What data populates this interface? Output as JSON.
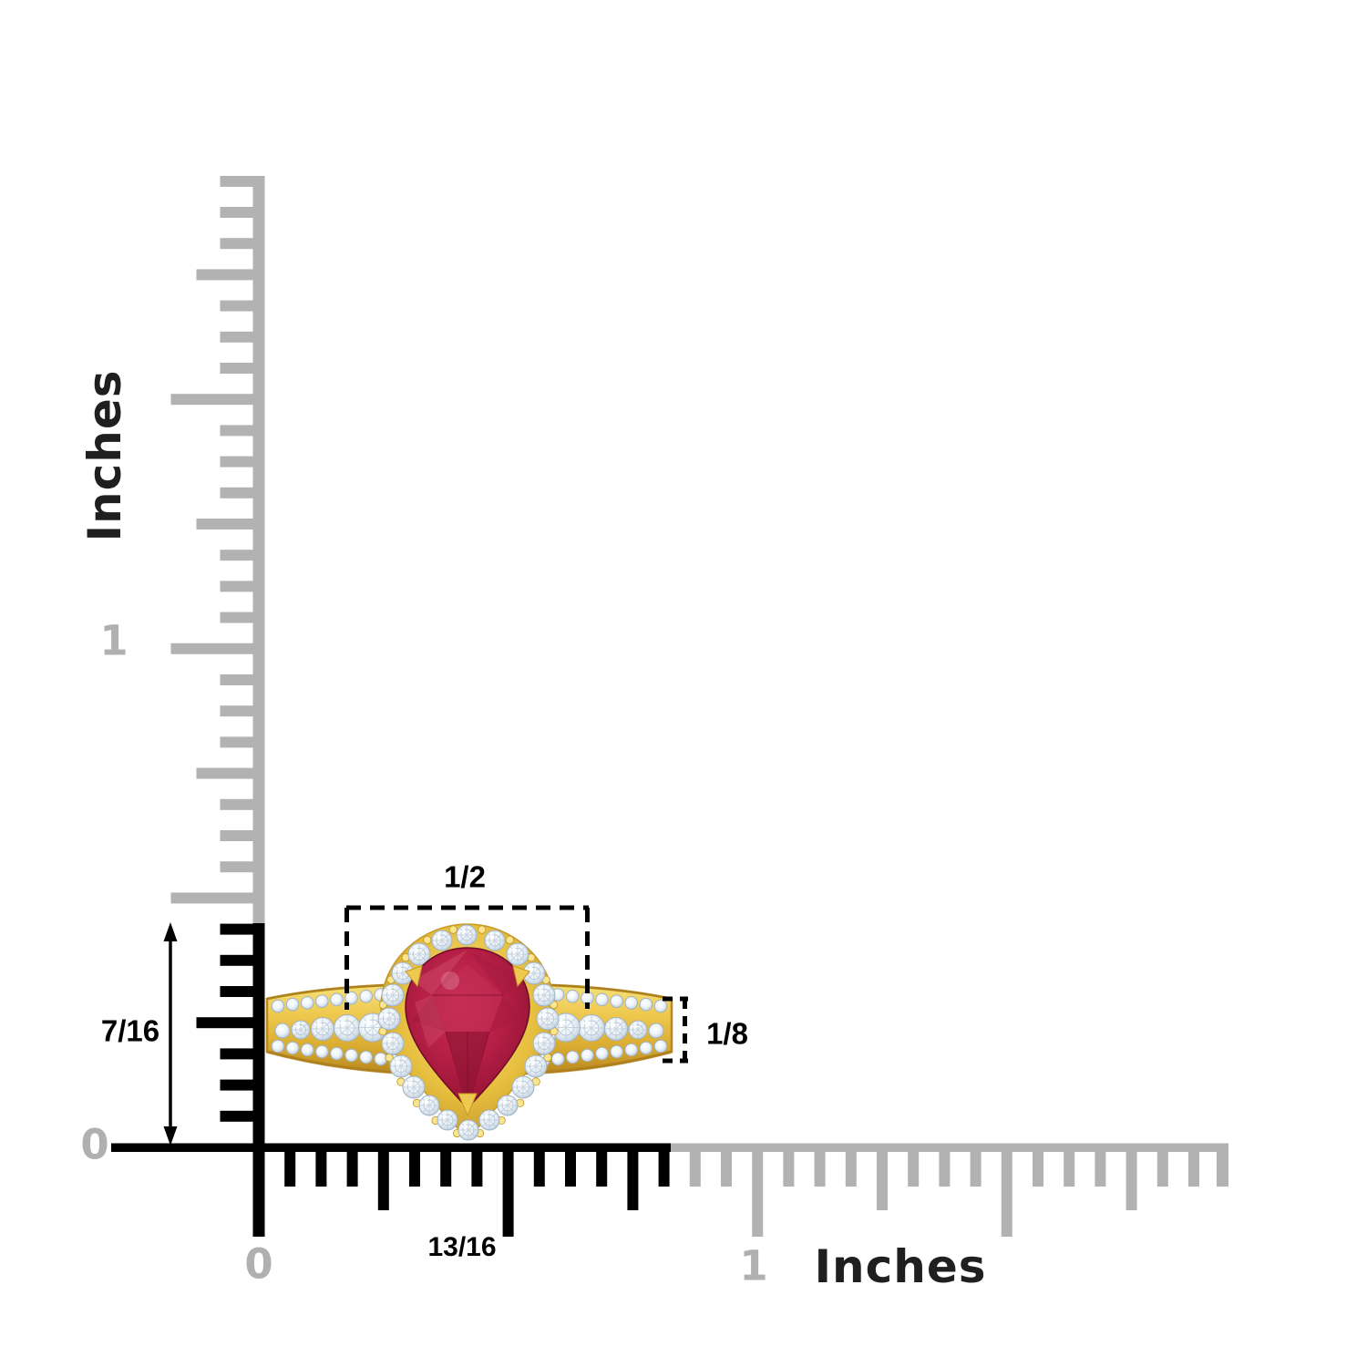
{
  "figure": {
    "alt": "Yellow gold ring with pear-cut ruby center stone, diamond sunburst halo and triple-row diamond band, shown against inch rulers",
    "subject": "ruby-diamond-ring"
  },
  "rulers": {
    "unit_label": "Inches",
    "vertical": {
      "zero_label": "0",
      "one_label": "1"
    },
    "horizontal": {
      "zero_label": "0",
      "one_label": "1"
    }
  },
  "measurements": {
    "head_width_in": "1/2",
    "height_in": "7/16",
    "band_width_in": "1/8",
    "overall_width_in": "13/16"
  },
  "colors": {
    "background": "#ffffff",
    "ruler_gray": "#b2b2b2",
    "ruler_black": "#000000",
    "number_gray": "#b0b0b0",
    "text_dark": "#1f1f1f",
    "annotation_black": "#000000",
    "gold": "#e8c342",
    "gold_dark": "#c0912a",
    "gold_light": "#f8e58c",
    "ruby": "#b01d42",
    "ruby_dark": "#7c0e2c",
    "ruby_light": "#d44a6b",
    "diamond": "#eef4f9",
    "diamond_edge": "#9fb3c4"
  }
}
